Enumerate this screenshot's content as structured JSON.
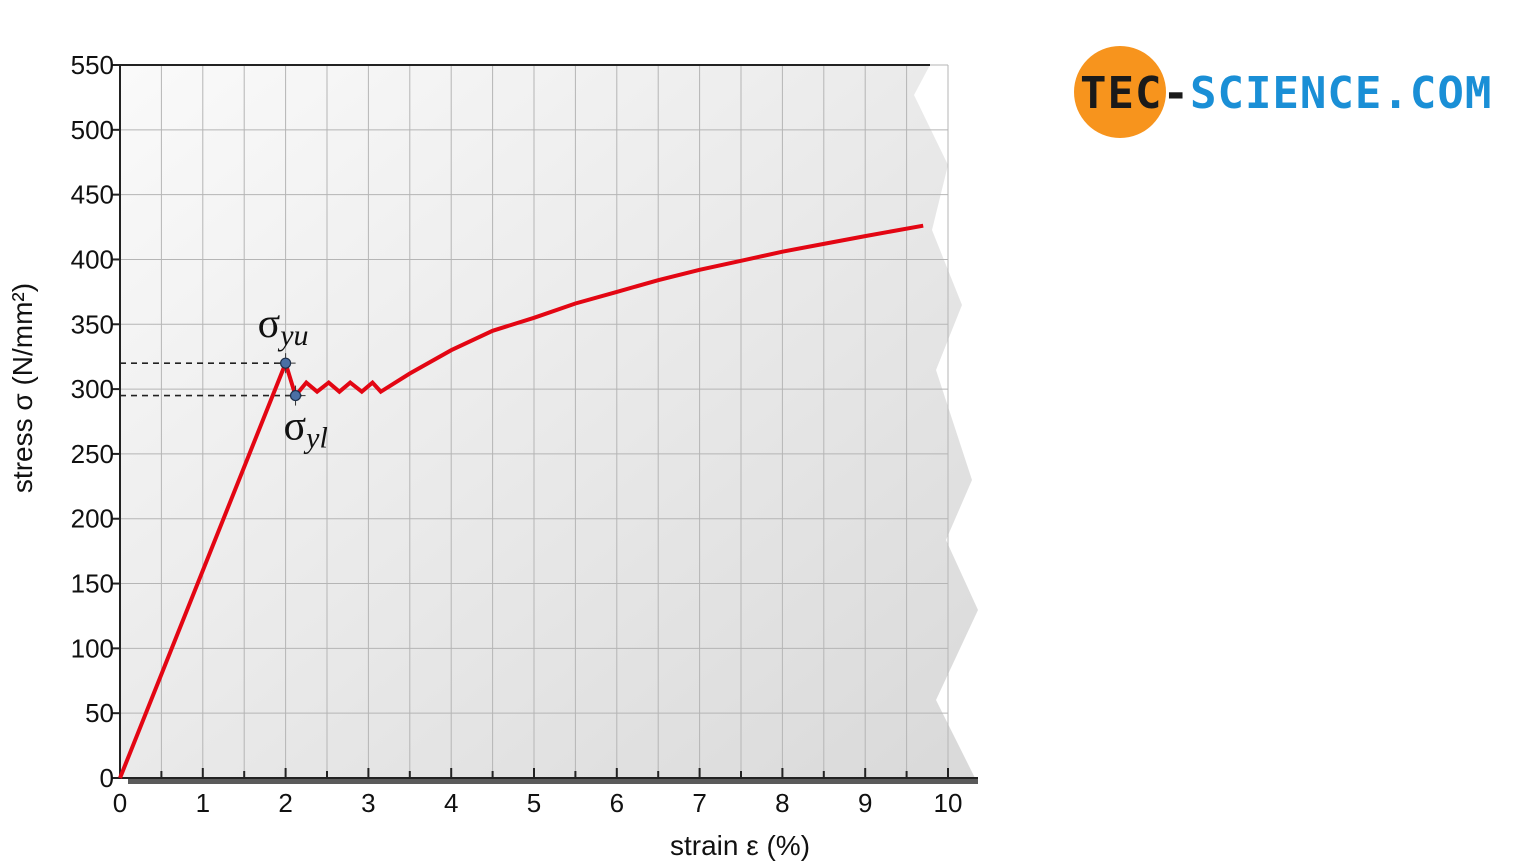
{
  "chart_data": {
    "type": "line",
    "xlabel": "strain ε (%)",
    "ylabel": "stress σ (N/mm²)",
    "xlim": [
      0,
      10
    ],
    "ylim": [
      0,
      550
    ],
    "x_ticks": [
      0,
      1,
      2,
      3,
      4,
      5,
      6,
      7,
      8,
      9,
      10
    ],
    "y_ticks": [
      0,
      50,
      100,
      150,
      200,
      250,
      300,
      350,
      400,
      450,
      500,
      550
    ],
    "grid": true,
    "series": [
      {
        "color": "#e30613",
        "points": [
          [
            0,
            0
          ],
          [
            2.0,
            320
          ],
          [
            2.12,
            295
          ],
          [
            2.25,
            305
          ],
          [
            2.38,
            298
          ],
          [
            2.52,
            305
          ],
          [
            2.65,
            298
          ],
          [
            2.78,
            305
          ],
          [
            2.92,
            298
          ],
          [
            3.05,
            305
          ],
          [
            3.15,
            298
          ],
          [
            3.5,
            312
          ],
          [
            4,
            330
          ],
          [
            4.5,
            345
          ],
          [
            5,
            355
          ],
          [
            5.5,
            366
          ],
          [
            6,
            375
          ],
          [
            6.5,
            384
          ],
          [
            7,
            392
          ],
          [
            7.5,
            399
          ],
          [
            8,
            406
          ],
          [
            8.5,
            412
          ],
          [
            9,
            418
          ],
          [
            9.7,
            426
          ]
        ]
      }
    ],
    "annotations": [
      {
        "x": 2.0,
        "y": 320,
        "sym": "σ",
        "sub": "yu"
      },
      {
        "x": 2.12,
        "y": 295,
        "sym": "σ",
        "sub": "yl"
      }
    ]
  },
  "logo": {
    "part1": "TEC-",
    "part2": "SCIENCE.COM"
  },
  "colors": {
    "curve": "#e30613",
    "logo_orange": "#f7941d",
    "logo_blue": "#1a8fd6",
    "marker": "#4a6fa5"
  }
}
